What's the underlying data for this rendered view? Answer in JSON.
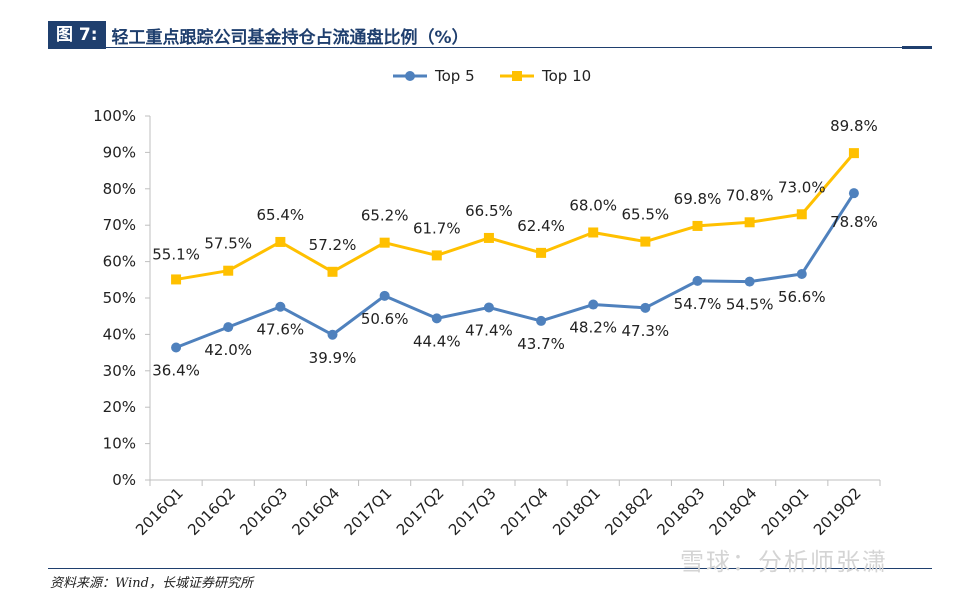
{
  "figure": {
    "label": "图 7:",
    "title": "轻工重点跟踪公司基金持仓占流通盘比例（%）",
    "source": "资料来源：Wind，长城证券研究所",
    "watermark": "雪球：分析师张潇"
  },
  "colors": {
    "top5": "#4f81bd",
    "top10": "#ffc000",
    "axis": "#bfbfbf",
    "header": "#1f3f6e"
  },
  "chart_data": {
    "type": "line",
    "title": "轻工重点跟踪公司基金持仓占流通盘比例（%）",
    "categories": [
      "2016Q1",
      "2016Q2",
      "2016Q3",
      "2016Q4",
      "2017Q1",
      "2017Q2",
      "2017Q3",
      "2017Q4",
      "2018Q1",
      "2018Q2",
      "2018Q3",
      "2018Q4",
      "2019Q1",
      "2019Q2"
    ],
    "series": [
      {
        "name": "Top 5",
        "values": [
          36.4,
          42.0,
          47.6,
          39.9,
          50.6,
          44.4,
          47.4,
          43.7,
          48.2,
          47.3,
          54.7,
          54.5,
          56.6,
          78.8
        ],
        "labels": [
          "36.4%",
          "42.0%",
          "47.6%",
          "39.9%",
          "50.6%",
          "44.4%",
          "47.4%",
          "43.7%",
          "48.2%",
          "47.3%",
          "54.7%",
          "54.5%",
          "56.6%",
          "78.8%"
        ]
      },
      {
        "name": "Top 10",
        "values": [
          55.1,
          57.5,
          65.4,
          57.2,
          65.2,
          61.7,
          66.5,
          62.4,
          68.0,
          65.5,
          69.8,
          70.8,
          73.0,
          89.8
        ],
        "labels": [
          "55.1%",
          "57.5%",
          "65.4%",
          "57.2%",
          "65.2%",
          "61.7%",
          "66.5%",
          "62.4%",
          "68.0%",
          "65.5%",
          "69.8%",
          "70.8%",
          "73.0%",
          "89.8%"
        ]
      }
    ],
    "yticks": [
      "0%",
      "10%",
      "20%",
      "30%",
      "40%",
      "50%",
      "60%",
      "70%",
      "80%",
      "90%",
      "100%"
    ],
    "ylim": [
      0,
      100
    ],
    "xlabel": "",
    "ylabel": "",
    "legend": "top-center",
    "grid": false
  }
}
